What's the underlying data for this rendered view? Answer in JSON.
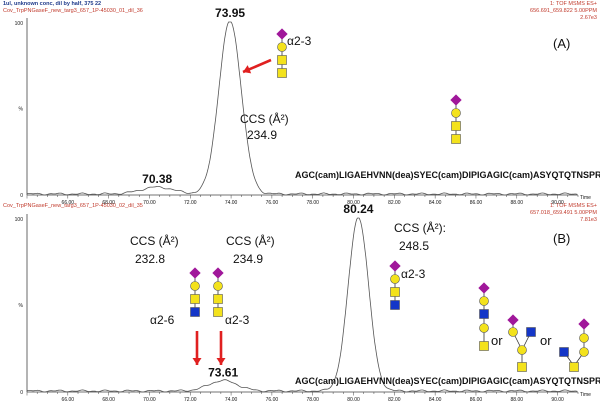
{
  "header": {
    "top_left_line1": "1ul, unknown conc, dil by half, 375 22",
    "top_left_line2": "Cov_TrpPNGaseF_new_targ3_657_1P-45030_01_dil_36",
    "top_right_line1": "1: TOF MSMS ES+",
    "top_right_line2": "656.691_659.822 5.00PPM",
    "top_right_line3": "2.67e3",
    "mid_left_line1": "Cov_TrpPNGaseF_new_targ3_657_1P-45030_02_dil_35",
    "mid_right_line1": "1: TOF MSMS ES+",
    "mid_right_line2": "657.018_659.491 5.00PPM",
    "mid_right_line3": "7.81e3"
  },
  "colors": {
    "curve": "#555555",
    "arrow": "#e02020",
    "sialic": "#a0179a",
    "galactose": "#f3e21c",
    "glcnac": "#1436c8",
    "hexnac": "#f3e21c",
    "axis": "#444444"
  },
  "chart_data": [
    {
      "type": "line",
      "panel_label": "(A)",
      "xlabel": "Time",
      "xlim": [
        64.0,
        91.0
      ],
      "ylim": [
        0,
        100
      ],
      "x_ticks": [
        "66.00",
        "68.00",
        "70.00",
        "72.00",
        "74.00",
        "76.00",
        "78.00",
        "80.00",
        "82.00",
        "84.00",
        "86.00",
        "88.00",
        "90.00"
      ],
      "y_ticks": [
        "0",
        "%",
        "100"
      ],
      "peaks": [
        {
          "label": "73.95",
          "x": 73.95,
          "y": 100,
          "width": 0.55
        },
        {
          "label": "70.38",
          "x": 70.38,
          "y": 4,
          "width": 0.8
        }
      ],
      "annotations": {
        "ccs_title": "CCS (Å²)",
        "ccs_value": "234.9",
        "linkage": "α2-3",
        "peptide": "AGC(cam)LIGAEHVNN(dea)SYEC(cam)DIPIGAGIC(cam)ASYQTQTNSPR"
      }
    },
    {
      "type": "line",
      "panel_label": "(B)",
      "xlabel": "Time",
      "xlim": [
        64.0,
        91.0
      ],
      "ylim": [
        0,
        100
      ],
      "x_ticks": [
        "66.00",
        "68.00",
        "70.00",
        "72.00",
        "74.00",
        "76.00",
        "78.00",
        "80.00",
        "82.00",
        "84.00",
        "86.00",
        "88.00",
        "90.00"
      ],
      "y_ticks": [
        "0",
        "%",
        "100"
      ],
      "peaks": [
        {
          "label": "80.24",
          "x": 80.24,
          "y": 100,
          "width": 0.5
        },
        {
          "label": "73.61",
          "x": 73.61,
          "y": 6,
          "width": 0.7
        }
      ],
      "annotations": {
        "ccs1_title": "CCS (Å²)",
        "ccs1_value": "232.8",
        "link1": "α2-6",
        "ccs2_title": "CCS (Å²)",
        "ccs2_value": "234.9",
        "link2": "α2-3",
        "ccs3_title": "CCS (Å²):",
        "ccs3_value": "248.5",
        "link3": "α2-3",
        "or1": "or",
        "or2": "or",
        "peptide": "AGC(cam)LIGAEHVNN(dea)SYEC(cam)DIPIGAGIC(cam)ASYQTQTNSPR"
      }
    }
  ]
}
